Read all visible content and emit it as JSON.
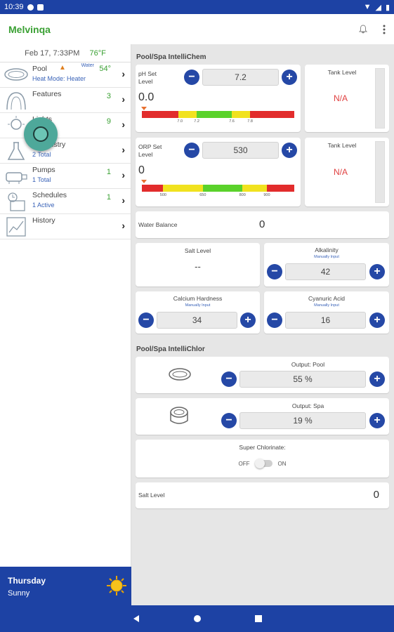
{
  "status": {
    "time": "10:39"
  },
  "app": {
    "title": "Melvinqa"
  },
  "sidebar": {
    "date": "Feb 17, 7:33PM",
    "temp": "76°F",
    "items": [
      {
        "label": "Pool",
        "sub": "Heat Mode: Heater",
        "water": "Water",
        "value": "54°"
      },
      {
        "label": "Features",
        "sub": "",
        "value": "3"
      },
      {
        "label": "Lights",
        "sub": "",
        "value": "9"
      },
      {
        "label": "Chemistry",
        "sub": "2 Total",
        "value": ""
      },
      {
        "label": "Pumps",
        "sub": "1 Total",
        "value": "1"
      },
      {
        "label": "Schedules",
        "sub": "1 Active",
        "value": "1"
      },
      {
        "label": "History",
        "sub": "",
        "value": ""
      }
    ]
  },
  "weather": {
    "day": "Thursday",
    "condition": "Sunny"
  },
  "intellichem": {
    "title": "Pool/Spa IntelliChem",
    "ph": {
      "label": "pH Set Level",
      "setpoint": "7.2",
      "reading": "0.0",
      "ticks": [
        "7.0",
        "7.2",
        "7.6",
        "7.8"
      ]
    },
    "orp": {
      "label": "ORP Set Level",
      "setpoint": "530",
      "reading": "0",
      "ticks": [
        "500",
        "650",
        "800",
        "900"
      ]
    },
    "tank1": {
      "title": "Tank Level",
      "value": "N/A"
    },
    "tank2": {
      "title": "Tank Level",
      "value": "N/A"
    },
    "water_balance": {
      "label": "Water Balance",
      "value": "0"
    },
    "salt": {
      "title": "Salt Level",
      "value": "--"
    },
    "alkalinity": {
      "title": "Alkalinity",
      "sub": "Manually Input",
      "value": "42"
    },
    "calcium": {
      "title": "Calcium Hardness",
      "sub": "Manually Input",
      "value": "34"
    },
    "cyanuric": {
      "title": "Cyanuric Acid",
      "sub": "Manually Input",
      "value": "16"
    }
  },
  "intellichlor": {
    "title": "Pool/Spa IntelliChlor",
    "pool": {
      "title": "Output: Pool",
      "value": "55 %"
    },
    "spa": {
      "title": "Output: Spa",
      "value": "19 %"
    },
    "super": {
      "title": "Super Chlorinate:",
      "off": "OFF",
      "on": "ON"
    },
    "salt": {
      "label": "Salt Level",
      "value": "0"
    }
  },
  "colors": {
    "accent": "#1d42a4",
    "green": "#3aa033",
    "red": "#e04040"
  }
}
